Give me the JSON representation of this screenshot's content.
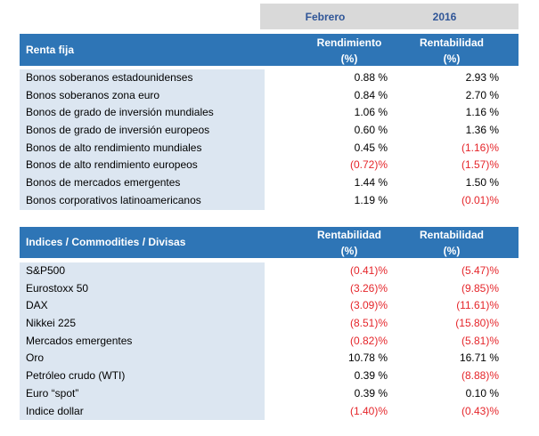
{
  "period": {
    "month": "Febrero",
    "year": "2016"
  },
  "colors": {
    "header_blue": "#2e75b6",
    "row_blue": "#dce6f1",
    "negative_red": "#e5252a",
    "period_text": "#2f5597"
  },
  "fixed_income": {
    "title": "Renta fija",
    "col1": {
      "line1": "Rendimiento",
      "line2": "(%)"
    },
    "col2": {
      "line1": "Rentabilidad",
      "line2": "(%)"
    },
    "rows": [
      {
        "name": "Bonos soberanos estadounidenses",
        "v1": "0.88 %",
        "v2": "2.93 %"
      },
      {
        "name": "Bonos soberanos zona euro",
        "v1": "0.84 %",
        "v2": "2.70 %"
      },
      {
        "name": "Bonos de grado de inversión mundiales",
        "v1": "1.06 %",
        "v2": "1.16 %"
      },
      {
        "name": "Bonos de grado de inversión europeos",
        "v1": "0.60 %",
        "v2": "1.36 %"
      },
      {
        "name": "Bonos de alto rendimiento mundiales",
        "v1": "0.45 %",
        "v2": "(1.16)%"
      },
      {
        "name": "Bonos de alto rendimiento europeos",
        "v1": "(0.72)%",
        "v2": "(1.57)%"
      },
      {
        "name": "Bonos de mercados emergentes",
        "v1": "1.44 %",
        "v2": "1.50 %"
      },
      {
        "name": "Bonos corporativos latinoamericanos",
        "v1": "1.19 %",
        "v2": "(0.01)%"
      }
    ]
  },
  "indices": {
    "title": "Indices / Commodities / Divisas",
    "col1": {
      "line1": "Rentabilidad",
      "line2": "(%)"
    },
    "col2": {
      "line1": "Rentabilidad",
      "line2": "(%)"
    },
    "rows": [
      {
        "name": "S&P500",
        "v1": "(0.41)%",
        "v2": "(5.47)%"
      },
      {
        "name": "Eurostoxx 50",
        "v1": "(3.26)%",
        "v2": "(9.85)%"
      },
      {
        "name": "DAX",
        "v1": "(3.09)%",
        "v2": "(11.61)%"
      },
      {
        "name": "Nikkei 225",
        "v1": "(8.51)%",
        "v2": "(15.80)%"
      },
      {
        "name": "Mercados emergentes",
        "v1": "(0.82)%",
        "v2": "(5.81)%"
      },
      {
        "name": "Oro",
        "v1": "10.78 %",
        "v2": "16.71 %"
      },
      {
        "name": "Petróleo crudo (WTI)",
        "v1": "0.39 %",
        "v2": "(8.88)%"
      },
      {
        "name": "Euro “spot”",
        "v1": "0.39 %",
        "v2": "0.10 %"
      },
      {
        "name": "Indice dollar",
        "v1": "(1.40)%",
        "v2": "(0.43)%"
      }
    ]
  }
}
